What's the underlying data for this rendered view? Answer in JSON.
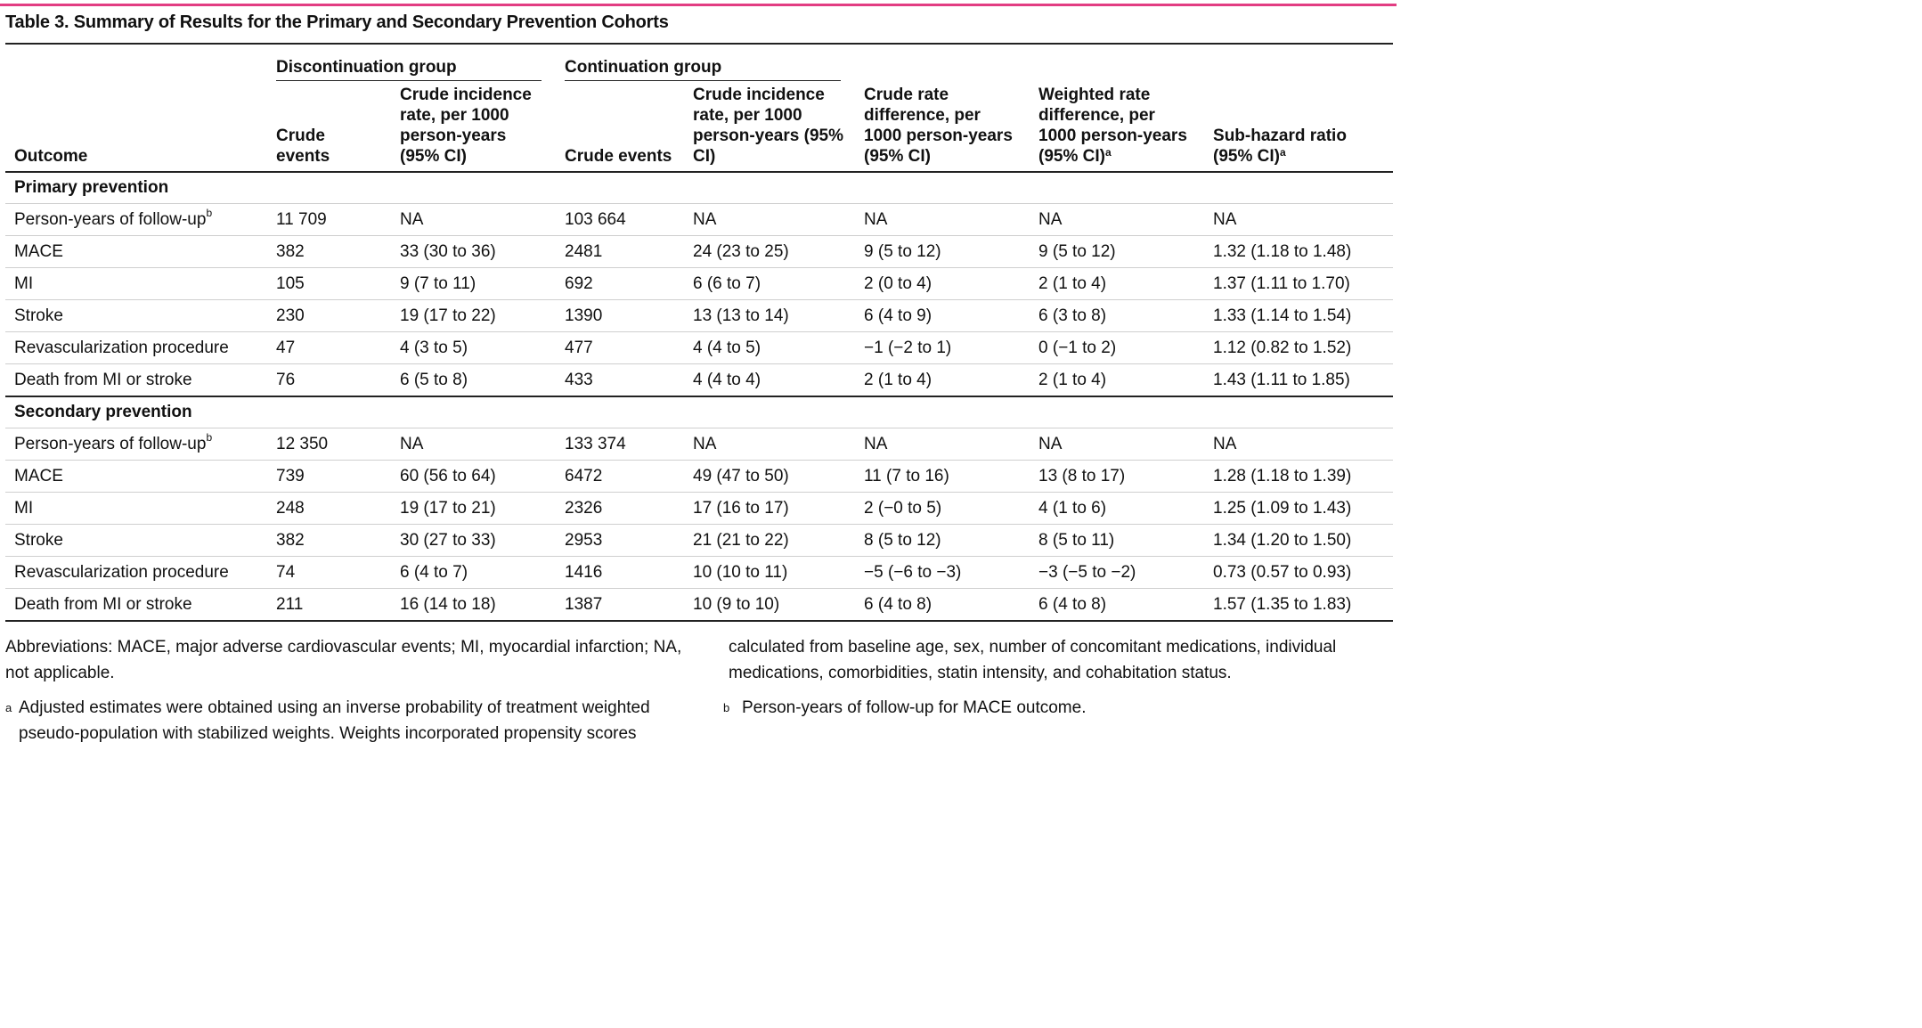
{
  "title": "Table 3. Summary of Results for the Primary and Secondary Prevention Cohorts",
  "header": {
    "outcome": "Outcome",
    "discontinuation_group": "Discontinuation group",
    "continuation_group": "Continuation group",
    "crude_events": "Crude events",
    "crude_incidence": "Crude incidence rate, per 1000 person-years (95% CI)",
    "crude_rate_diff": "Crude rate difference, per 1000 person-years (95% CI)",
    "weighted_rate_diff": "Weighted rate difference, per 1000 person-years (95% CI)",
    "weighted_rate_diff_sup": "a",
    "sub_hazard": "Sub-hazard ratio (95% CI)",
    "sub_hazard_sup": "a"
  },
  "sections": [
    {
      "label": "Primary prevention",
      "rows": [
        {
          "outcome": "Person-years of follow-up",
          "sup": "b",
          "disc_events": "11 709",
          "disc_rate": "NA",
          "cont_events": "103 664",
          "cont_rate": "NA",
          "crude_diff": "NA",
          "weighted_diff": "NA",
          "shr": "NA"
        },
        {
          "outcome": "MACE",
          "sup": "",
          "disc_events": "382",
          "disc_rate": "33 (30 to 36)",
          "cont_events": "2481",
          "cont_rate": "24 (23 to 25)",
          "crude_diff": "9 (5 to 12)",
          "weighted_diff": "9 (5 to 12)",
          "shr": "1.32 (1.18 to 1.48)"
        },
        {
          "outcome": "MI",
          "sup": "",
          "disc_events": "105",
          "disc_rate": "9 (7 to 11)",
          "cont_events": "692",
          "cont_rate": "6 (6 to 7)",
          "crude_diff": "2 (0 to 4)",
          "weighted_diff": "2 (1 to 4)",
          "shr": "1.37 (1.11 to 1.70)"
        },
        {
          "outcome": "Stroke",
          "sup": "",
          "disc_events": "230",
          "disc_rate": "19 (17 to 22)",
          "cont_events": "1390",
          "cont_rate": "13 (13 to 14)",
          "crude_diff": "6 (4 to 9)",
          "weighted_diff": "6 (3 to 8)",
          "shr": "1.33 (1.14 to 1.54)"
        },
        {
          "outcome": "Revascularization procedure",
          "sup": "",
          "disc_events": "47",
          "disc_rate": "4 (3 to 5)",
          "cont_events": "477",
          "cont_rate": "4 (4 to 5)",
          "crude_diff": "−1 (−2 to 1)",
          "weighted_diff": "0 (−1 to 2)",
          "shr": "1.12 (0.82 to 1.52)"
        },
        {
          "outcome": "Death from MI or stroke",
          "sup": "",
          "disc_events": "76",
          "disc_rate": "6 (5 to 8)",
          "cont_events": "433",
          "cont_rate": "4 (4 to 4)",
          "crude_diff": "2 (1 to 4)",
          "weighted_diff": "2 (1 to 4)",
          "shr": "1.43 (1.11 to 1.85)"
        }
      ]
    },
    {
      "label": "Secondary prevention",
      "rows": [
        {
          "outcome": "Person-years of follow-up",
          "sup": "b",
          "disc_events": "12 350",
          "disc_rate": "NA",
          "cont_events": "133 374",
          "cont_rate": "NA",
          "crude_diff": "NA",
          "weighted_diff": "NA",
          "shr": "NA"
        },
        {
          "outcome": "MACE",
          "sup": "",
          "disc_events": "739",
          "disc_rate": "60 (56 to 64)",
          "cont_events": "6472",
          "cont_rate": "49 (47 to 50)",
          "crude_diff": "11 (7 to 16)",
          "weighted_diff": "13 (8 to 17)",
          "shr": "1.28 (1.18 to 1.39)"
        },
        {
          "outcome": "MI",
          "sup": "",
          "disc_events": "248",
          "disc_rate": "19 (17 to 21)",
          "cont_events": "2326",
          "cont_rate": "17 (16 to 17)",
          "crude_diff": "2 (−0 to 5)",
          "weighted_diff": "4 (1 to 6)",
          "shr": "1.25 (1.09 to 1.43)"
        },
        {
          "outcome": "Stroke",
          "sup": "",
          "disc_events": "382",
          "disc_rate": "30 (27 to 33)",
          "cont_events": "2953",
          "cont_rate": "21 (21 to 22)",
          "crude_diff": "8 (5 to 12)",
          "weighted_diff": "8 (5 to 11)",
          "shr": "1.34 (1.20 to 1.50)"
        },
        {
          "outcome": "Revascularization procedure",
          "sup": "",
          "disc_events": "74",
          "disc_rate": "6 (4 to 7)",
          "cont_events": "1416",
          "cont_rate": "10 (10 to 11)",
          "crude_diff": "−5 (−6 to −3)",
          "weighted_diff": "−3 (−5 to −2)",
          "shr": "0.73 (0.57 to 0.93)"
        },
        {
          "outcome": "Death from MI or stroke",
          "sup": "",
          "disc_events": "211",
          "disc_rate": "16 (14 to 18)",
          "cont_events": "1387",
          "cont_rate": "10 (9 to 10)",
          "crude_diff": "6 (4 to 8)",
          "weighted_diff": "6 (4 to 8)",
          "shr": "1.57 (1.35 to 1.83)"
        }
      ]
    }
  ],
  "footnotes": {
    "abbreviations": "Abbreviations: MACE, major adverse cardiovascular events; MI, myocardial infarction; NA, not applicable.",
    "a_mark": "a",
    "a_text_left": "Adjusted estimates were obtained using an inverse probability of treatment weighted pseudo-population with stabilized weights. Weights incorporated propensity scores",
    "a_text_right": "calculated from baseline age, sex, number of concomitant medications, individual medications, comorbidities, statin intensity, and cohabitation status.",
    "b_mark": "b",
    "b_text": "Person-years of follow-up for MACE outcome."
  }
}
